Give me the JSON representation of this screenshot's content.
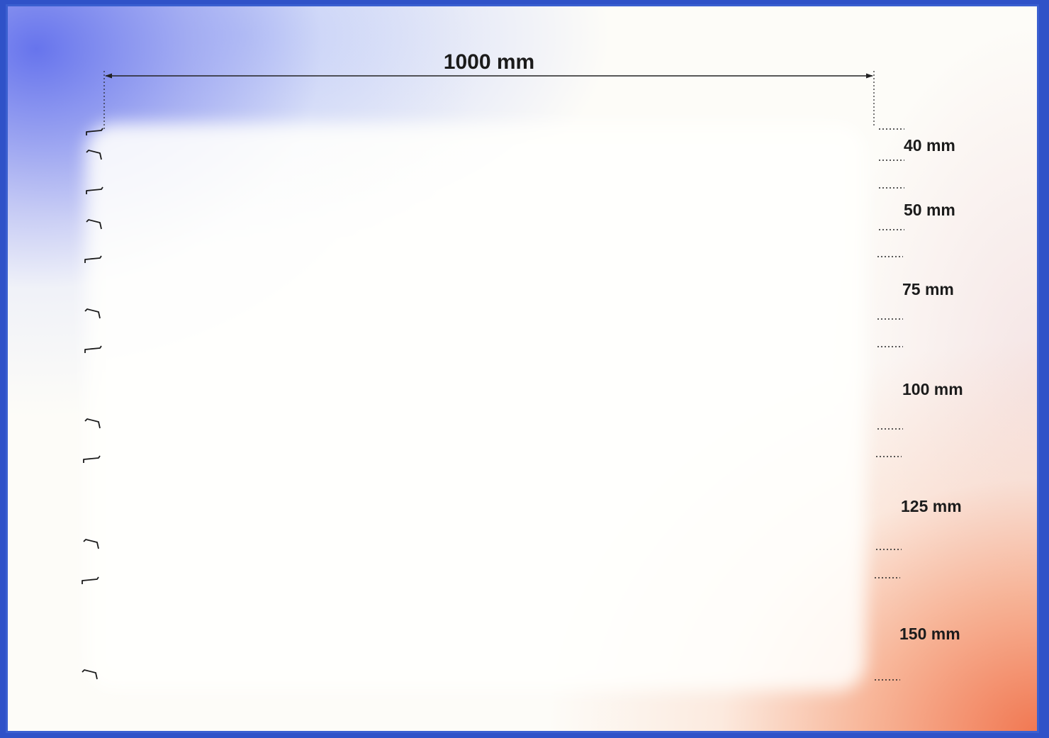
{
  "width_label": "1000 mm",
  "panels": [
    {
      "thickness_label": "40 mm"
    },
    {
      "thickness_label": "50 mm"
    },
    {
      "thickness_label": "75 mm"
    },
    {
      "thickness_label": "100 mm"
    },
    {
      "thickness_label": "125 mm"
    },
    {
      "thickness_label": "150 mm"
    }
  ],
  "colors": {
    "line": "#1a1a1a",
    "gradient_blue": "#5e6ee9",
    "gradient_orange": "#f06c46"
  }
}
